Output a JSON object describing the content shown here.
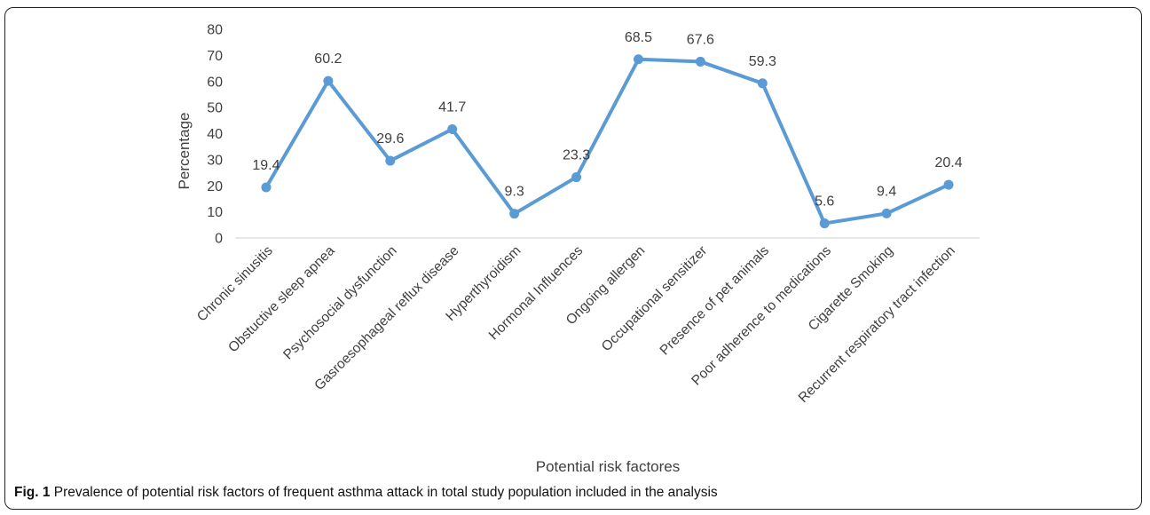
{
  "chart_data": {
    "type": "line",
    "categories": [
      "Chronic sinusitis",
      "Obstuctive sleep apnea",
      "Psychosocial dysfunction",
      "Gasroesophageal reflux disease",
      "Hyperthyroidism",
      "Hormonal Influences",
      "Ongoing allergen",
      "Occupational sensitizer",
      "Presence of pet animals",
      "Poor adherence to medications",
      "Cigarette Smoking",
      "Recurrent respiratory tract infection"
    ],
    "values": [
      19.4,
      60.2,
      29.6,
      41.7,
      9.3,
      23.3,
      68.5,
      67.6,
      59.3,
      5.6,
      9.4,
      20.4
    ],
    "data_labels": [
      "19.4",
      "60.2",
      "29.6",
      "41.7",
      "9.3",
      "23.3",
      "68.5",
      "67.6",
      "59.3",
      "5.6",
      "9.4",
      "20.4"
    ],
    "xlabel": "Potential  risk factores",
    "ylabel": "Percentage",
    "ylim": [
      0,
      80
    ],
    "yticks": [
      0,
      10,
      20,
      30,
      40,
      50,
      60,
      70,
      80
    ],
    "grid": false,
    "legend": "none",
    "color": "#5b9bd5"
  },
  "caption": {
    "label": "Fig. 1",
    "text": "Prevalence of potential risk factors of frequent asthma attack in total study population included in the analysis"
  }
}
